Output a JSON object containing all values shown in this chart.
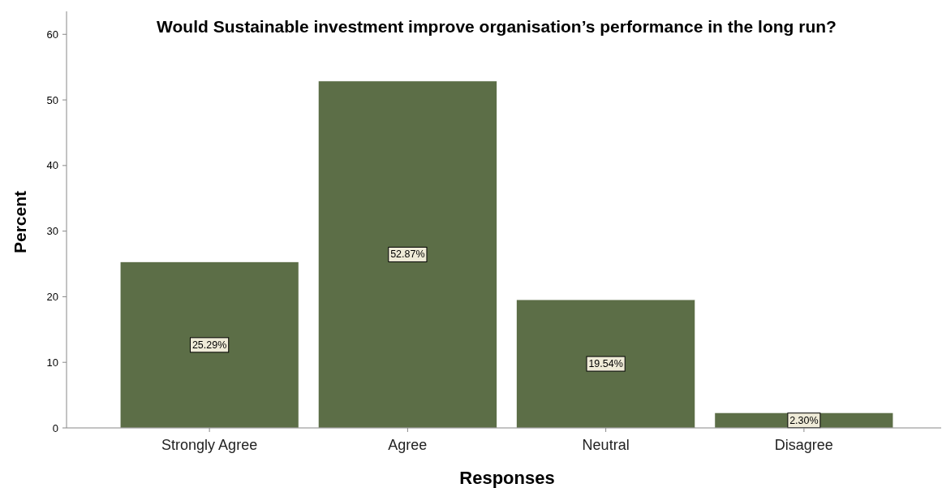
{
  "chart_data": {
    "type": "bar",
    "title": "Would Sustainable investment improve organisation’s performance in the long run?",
    "xlabel": "Responses",
    "ylabel": "Percent",
    "categories": [
      "Strongly Agree",
      "Agree",
      "Neutral",
      "Disagree"
    ],
    "values": [
      25.29,
      52.87,
      19.54,
      2.3
    ],
    "value_labels": [
      "25.29%",
      "52.87%",
      "19.54%",
      "2.30%"
    ],
    "color": "#5c6e47",
    "ylim": [
      0,
      63.5
    ],
    "yticks": [
      0,
      10,
      20,
      30,
      40,
      50,
      60
    ],
    "grid": false
  }
}
